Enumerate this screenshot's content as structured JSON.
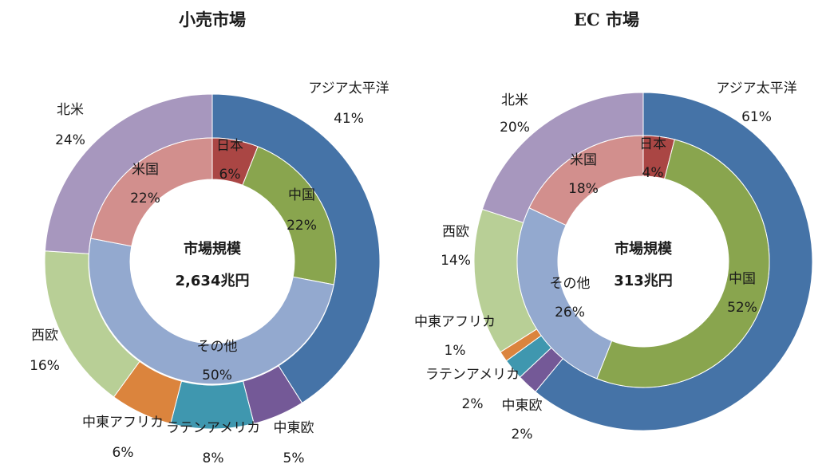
{
  "colors": {
    "asia_pacific": "#4573A7",
    "north_america": "#A797BE",
    "western_europe": "#B8CF96",
    "middle_east_africa": "#DB843D",
    "latin_america": "#3F97AF",
    "central_eastern_europe": "#745997",
    "japan": "#AA4644",
    "china": "#89A54E",
    "usa": "#D28F8D",
    "other": "#93A9CF"
  },
  "chart_data": [
    {
      "type": "donut",
      "title": "小売市場",
      "center_label": "市場規模",
      "center_value": "2,634兆円",
      "outer_ring": [
        {
          "name": "アジア太平洋",
          "value": 41,
          "label": "41%",
          "color_key": "asia_pacific"
        },
        {
          "name": "中東欧",
          "value": 5,
          "label": "5%",
          "color_key": "central_eastern_europe"
        },
        {
          "name": "ラテンアメリカ",
          "value": 8,
          "label": "8%",
          "color_key": "latin_america"
        },
        {
          "name": "中東アフリカ",
          "value": 6,
          "label": "6%",
          "color_key": "middle_east_africa"
        },
        {
          "name": "西欧",
          "value": 16,
          "label": "16%",
          "color_key": "western_europe"
        },
        {
          "name": "北米",
          "value": 24,
          "label": "24%",
          "color_key": "north_america"
        }
      ],
      "inner_ring": [
        {
          "name": "日本",
          "value": 6,
          "label": "6%",
          "color_key": "japan"
        },
        {
          "name": "中国",
          "value": 22,
          "label": "22%",
          "color_key": "china"
        },
        {
          "name": "その他",
          "value": 50,
          "label": "50%",
          "color_key": "other"
        },
        {
          "name": "米国",
          "value": 22,
          "label": "22%",
          "color_key": "usa"
        }
      ]
    },
    {
      "type": "donut",
      "title": "EC 市場",
      "center_label": "市場規模",
      "center_value": "313兆円",
      "outer_ring": [
        {
          "name": "アジア太平洋",
          "value": 61,
          "label": "61%",
          "color_key": "asia_pacific"
        },
        {
          "name": "中東欧",
          "value": 2,
          "label": "2%",
          "color_key": "central_eastern_europe"
        },
        {
          "name": "ラテンアメリカ",
          "value": 2,
          "label": "2%",
          "color_key": "latin_america"
        },
        {
          "name": "中東アフリカ",
          "value": 1,
          "label": "1%",
          "color_key": "middle_east_africa"
        },
        {
          "name": "西欧",
          "value": 14,
          "label": "14%",
          "color_key": "western_europe"
        },
        {
          "name": "北米",
          "value": 20,
          "label": "20%",
          "color_key": "north_america"
        }
      ],
      "inner_ring": [
        {
          "name": "日本",
          "value": 4,
          "label": "4%",
          "color_key": "japan"
        },
        {
          "name": "中国",
          "value": 52,
          "label": "52%",
          "color_key": "china"
        },
        {
          "name": "その他",
          "value": 26,
          "label": "26%",
          "color_key": "other"
        },
        {
          "name": "米国",
          "value": 18,
          "label": "18%",
          "color_key": "usa"
        }
      ]
    }
  ]
}
